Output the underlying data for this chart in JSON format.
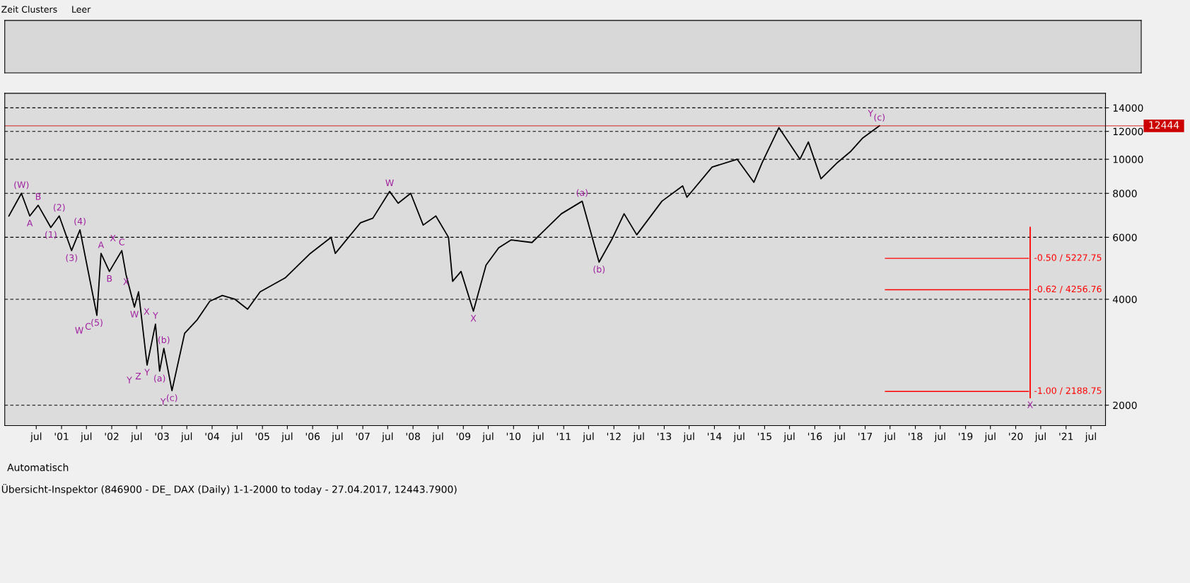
{
  "chart_data": {
    "type": "line",
    "log": "y",
    "grid": "y",
    "marker": "none",
    "line_style": "solid",
    "xlim": [
      "1999-11-15",
      "2021-10-15"
    ],
    "ylim": [
      1750,
      15400
    ],
    "yticks": [
      2000,
      4000,
      6000,
      8000,
      10000,
      12000,
      14000
    ],
    "xticks": [
      {
        "value": "2000-07-01",
        "label": "jul"
      },
      {
        "value": "2001-01-01",
        "label": "'01"
      },
      {
        "value": "2001-07-01",
        "label": "jul"
      },
      {
        "value": "2002-01-01",
        "label": "'02"
      },
      {
        "value": "2002-07-01",
        "label": "jul"
      },
      {
        "value": "2003-01-01",
        "label": "'03"
      },
      {
        "value": "2003-07-01",
        "label": "jul"
      },
      {
        "value": "2004-01-01",
        "label": "'04"
      },
      {
        "value": "2004-07-01",
        "label": "jul"
      },
      {
        "value": "2005-01-01",
        "label": "'05"
      },
      {
        "value": "2005-07-01",
        "label": "jul"
      },
      {
        "value": "2006-01-01",
        "label": "'06"
      },
      {
        "value": "2006-07-01",
        "label": "jul"
      },
      {
        "value": "2007-01-01",
        "label": "'07"
      },
      {
        "value": "2007-07-01",
        "label": "jul"
      },
      {
        "value": "2008-01-01",
        "label": "'08"
      },
      {
        "value": "2008-07-01",
        "label": "jul"
      },
      {
        "value": "2009-01-01",
        "label": "'09"
      },
      {
        "value": "2009-07-01",
        "label": "jul"
      },
      {
        "value": "2010-01-01",
        "label": "'10"
      },
      {
        "value": "2010-07-01",
        "label": "jul"
      },
      {
        "value": "2011-01-01",
        "label": "'11"
      },
      {
        "value": "2011-07-01",
        "label": "jul"
      },
      {
        "value": "2012-01-01",
        "label": "'12"
      },
      {
        "value": "2012-07-01",
        "label": "jul"
      },
      {
        "value": "2013-01-01",
        "label": "'13"
      },
      {
        "value": "2013-07-01",
        "label": "jul"
      },
      {
        "value": "2014-01-01",
        "label": "'14"
      },
      {
        "value": "2014-07-01",
        "label": "jul"
      },
      {
        "value": "2015-01-01",
        "label": "'15"
      },
      {
        "value": "2015-07-01",
        "label": "jul"
      },
      {
        "value": "2016-01-01",
        "label": "'16"
      },
      {
        "value": "2016-07-01",
        "label": "jul"
      },
      {
        "value": "2017-01-01",
        "label": "'17"
      },
      {
        "value": "2017-07-01",
        "label": "jul"
      },
      {
        "value": "2018-01-01",
        "label": "'18"
      },
      {
        "value": "2018-07-01",
        "label": "jul"
      },
      {
        "value": "2019-01-01",
        "label": "'19"
      },
      {
        "value": "2019-07-01",
        "label": "jul"
      },
      {
        "value": "2020-01-01",
        "label": "'20"
      },
      {
        "value": "2020-07-01",
        "label": "jul"
      },
      {
        "value": "2021-01-01",
        "label": "'21"
      },
      {
        "value": "2021-07-01",
        "label": "jul"
      }
    ],
    "series": [
      {
        "color": "#000000",
        "x": [
          "1999-12",
          "2000-03",
          "2000-05",
          "2000-07",
          "2000-10",
          "2000-12",
          "2001-03",
          "2001-05",
          "2001-09",
          "2001-10",
          "2001-12",
          "2002-03",
          "2002-04",
          "2002-06",
          "2002-07",
          "2002-09",
          "2002-11",
          "2002-12",
          "2003-01",
          "2003-03",
          "2003-06",
          "2003-09",
          "2003-12",
          "2004-03",
          "2004-06",
          "2004-09",
          "2004-12",
          "2005-06",
          "2005-12",
          "2006-05",
          "2006-06",
          "2006-12",
          "2007-03",
          "2007-07",
          "2007-09",
          "2007-12",
          "2008-03",
          "2008-06",
          "2008-09",
          "2008-10",
          "2008-12",
          "2009-03",
          "2009-06",
          "2009-09",
          "2009-12",
          "2010-05",
          "2010-12",
          "2011-05",
          "2011-09",
          "2011-12",
          "2012-03",
          "2012-06",
          "2012-12",
          "2013-05",
          "2013-06",
          "2013-12",
          "2014-06",
          "2014-10",
          "2014-12",
          "2015-04",
          "2015-09",
          "2015-11",
          "2016-02",
          "2016-06",
          "2016-09",
          "2016-12",
          "2017-04"
        ],
        "values": [
          6900,
          8000,
          6900,
          7400,
          6400,
          6900,
          5500,
          6300,
          3600,
          5400,
          4800,
          5500,
          4700,
          3800,
          4200,
          2600,
          3400,
          2500,
          2900,
          2200,
          3200,
          3500,
          3950,
          4100,
          4000,
          3750,
          4200,
          4600,
          5400,
          6000,
          5400,
          6600,
          6800,
          8100,
          7500,
          8000,
          6500,
          6900,
          6000,
          4500,
          4800,
          3700,
          5000,
          5600,
          5900,
          5800,
          7000,
          7600,
          5100,
          5900,
          7000,
          6100,
          7600,
          8400,
          7800,
          9500,
          10000,
          8600,
          9800,
          12300,
          10000,
          11200,
          8800,
          9800,
          10500,
          11500,
          12444
        ]
      },
      {
        "color": "#ff0000",
        "x": [
          "2020-04",
          "2020-04"
        ],
        "values": [
          6400,
          2100
        ]
      }
    ],
    "ref_lines": [
      {
        "axis": "y",
        "value": 5227.75,
        "label": "-0.50 / 5227.75",
        "color": "#ff0000"
      },
      {
        "axis": "y",
        "value": 4256.76,
        "label": "-0.62 / 4256.76",
        "color": "#ff0000"
      },
      {
        "axis": "y",
        "value": 2188.75,
        "label": "-1.00 / 2188.75",
        "color": "#ff0000"
      },
      {
        "axis": "y",
        "value": 12444,
        "label": "12444",
        "color": "#cc0000"
      }
    ],
    "annotations": [
      {
        "text": "(W)",
        "x": "2000-03",
        "y": 8000
      },
      {
        "text": "A",
        "x": "2000-05",
        "y": 6900
      },
      {
        "text": "B",
        "x": "2000-07",
        "y": 7400
      },
      {
        "text": "(1)",
        "x": "2000-10",
        "y": 6400
      },
      {
        "text": "(2)",
        "x": "2000-12",
        "y": 6900
      },
      {
        "text": "(3)",
        "x": "2001-03",
        "y": 5500
      },
      {
        "text": "(4)",
        "x": "2001-05",
        "y": 6300
      },
      {
        "text": "(5)",
        "x": "2001-09",
        "y": 3600
      },
      {
        "text": "C",
        "x": "2001-09",
        "y": 3600
      },
      {
        "text": "W",
        "x": "2001-09",
        "y": 3600
      },
      {
        "text": "A",
        "x": "2001-10",
        "y": 5400
      },
      {
        "text": "B",
        "x": "2001-12",
        "y": 4800
      },
      {
        "text": "C",
        "x": "2002-03",
        "y": 5500
      },
      {
        "text": "X",
        "x": "2002-03",
        "y": 5500
      },
      {
        "text": "X",
        "x": "2002-04",
        "y": 4700
      },
      {
        "text": "W",
        "x": "2002-06",
        "y": 3800
      },
      {
        "text": "Y",
        "x": "2002-09",
        "y": 2600
      },
      {
        "text": "Z",
        "x": "2002-09",
        "y": 2600
      },
      {
        "text": "Y",
        "x": "2002-09",
        "y": 2600
      },
      {
        "text": "Y",
        "x": "2002-11",
        "y": 3400
      },
      {
        "text": "X",
        "x": "2002-11",
        "y": 3400
      },
      {
        "text": "(a)",
        "x": "2002-12",
        "y": 2500
      },
      {
        "text": "(b)",
        "x": "2003-01",
        "y": 2900
      },
      {
        "text": "(c)",
        "x": "2003-03",
        "y": 2200
      },
      {
        "text": "Y",
        "x": "2003-03",
        "y": 2200
      },
      {
        "text": "W",
        "x": "2007-07",
        "y": 8100
      },
      {
        "text": "X",
        "x": "2009-03",
        "y": 3700
      },
      {
        "text": "(a)",
        "x": "2011-05",
        "y": 7600
      },
      {
        "text": "(b)",
        "x": "2011-09",
        "y": 5100
      },
      {
        "text": "(c)",
        "x": "2017-04",
        "y": 12444
      },
      {
        "text": "Y",
        "x": "2017-04",
        "y": 12444
      },
      {
        "text": "X",
        "x": "2020-04",
        "y": 2100
      },
      "Zeit Clusters",
      "Leer",
      "Automatisch",
      "Übersicht-Inspektor (846900 - DE_ DAX (Daily) 1-1-2000 to today - 27.04.2017, 12443.7900)"
    ]
  }
}
